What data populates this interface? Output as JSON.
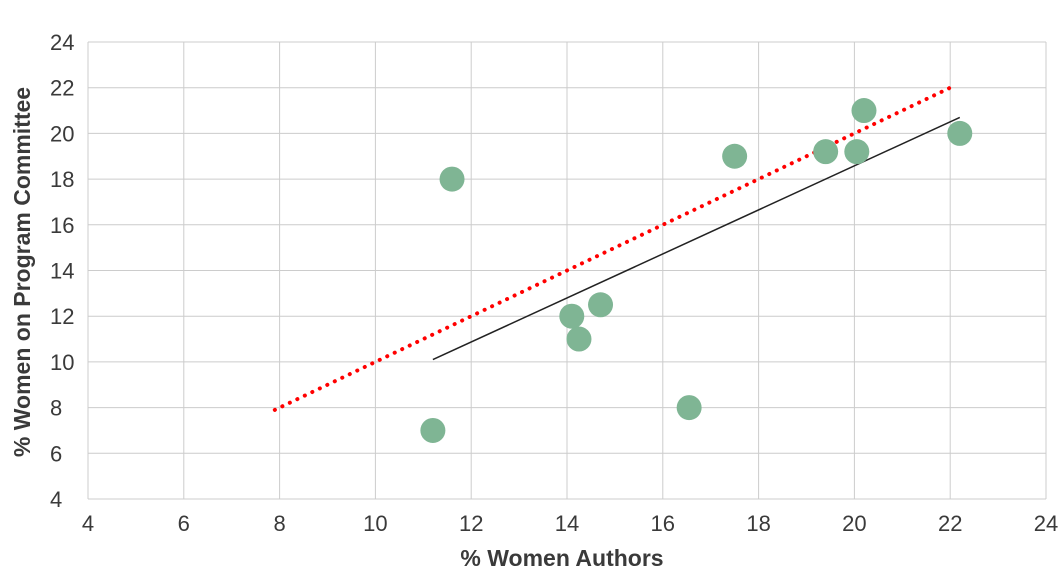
{
  "colors": {
    "points": "#7fb594",
    "grid": "#cccccc",
    "parity_line": "#ff0000",
    "fit_line": "#222222"
  },
  "chart_data": {
    "type": "scatter",
    "xlabel": "% Women Authors",
    "ylabel": "% Women on Program Committee",
    "xlim": [
      4,
      24
    ],
    "ylim": [
      4,
      24
    ],
    "xticks": [
      4,
      6,
      8,
      10,
      12,
      14,
      16,
      18,
      20,
      22,
      24
    ],
    "yticks": [
      4,
      6,
      8,
      10,
      12,
      14,
      16,
      18,
      20,
      22,
      24
    ],
    "grid": true,
    "points": [
      {
        "x": 11.6,
        "y": 18.0
      },
      {
        "x": 11.2,
        "y": 7.0
      },
      {
        "x": 14.1,
        "y": 12.0
      },
      {
        "x": 14.25,
        "y": 11.0
      },
      {
        "x": 14.7,
        "y": 12.5
      },
      {
        "x": 16.55,
        "y": 8.0
      },
      {
        "x": 17.5,
        "y": 19.0
      },
      {
        "x": 19.4,
        "y": 19.2
      },
      {
        "x": 20.05,
        "y": 19.2
      },
      {
        "x": 20.2,
        "y": 21.0
      },
      {
        "x": 22.2,
        "y": 20.0
      }
    ],
    "reference_lines": [
      {
        "style": "dotted",
        "color": "#ff0000",
        "from": [
          7.9,
          7.9
        ],
        "to": [
          22,
          22
        ]
      },
      {
        "style": "solid",
        "color": "#222222",
        "from": [
          11.2,
          10.1
        ],
        "to": [
          22.2,
          20.7
        ]
      }
    ]
  }
}
